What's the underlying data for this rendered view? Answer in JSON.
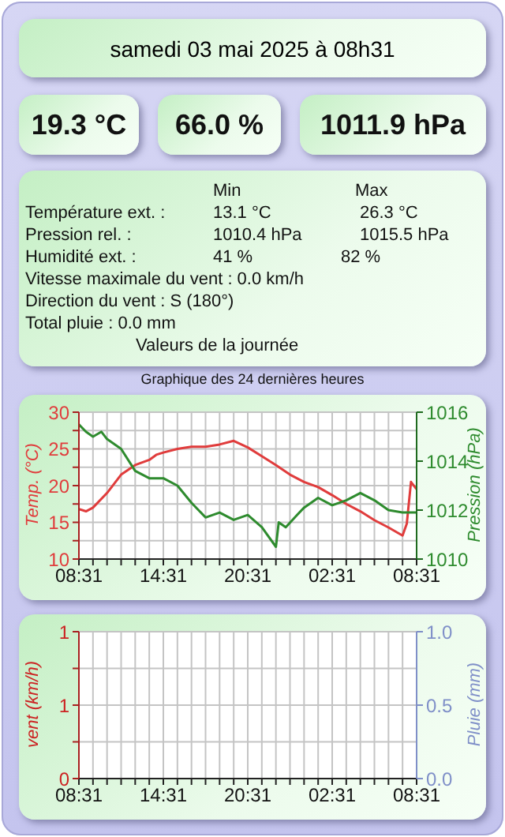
{
  "chart_data": [
    {
      "type": "other",
      "title": "samedi 03 mai 2025 à 08h31",
      "annotations": [
        "19.3 °C",
        "66.0 %",
        "1011.9 hPa",
        "Min",
        "Max",
        "Température ext. :",
        "13.1 °C",
        "26.3 °C",
        "Pression rel. :",
        "1010.4 hPa",
        "1015.5 hPa",
        "Humidité ext. :",
        "41 %",
        "82 %",
        "Vitesse maximale du vent : 0.0 km/h",
        "Direction du vent : S (180°)",
        "Total pluie : 0.0 mm",
        "Valeurs de la journée"
      ]
    },
    {
      "type": "line",
      "title": "Graphique des 24 dernières heures",
      "ylabel": "Temp. (°C)",
      "y2label": "Pression (hPa)",
      "grid": true,
      "xlim": [
        "2025-05-02T08:31",
        "2025-05-03T08:31"
      ],
      "xticks": [
        {
          "value": "2025-05-02T08:31",
          "label": "08:31"
        },
        {
          "value": "2025-05-02T09:31",
          "label": null
        },
        {
          "value": "2025-05-02T10:31",
          "label": null
        },
        {
          "value": "2025-05-02T11:31",
          "label": null
        },
        {
          "value": "2025-05-02T12:31",
          "label": null
        },
        {
          "value": "2025-05-02T13:31",
          "label": null
        },
        {
          "value": "2025-05-02T14:31",
          "label": "14:31"
        },
        {
          "value": "2025-05-02T15:31",
          "label": null
        },
        {
          "value": "2025-05-02T16:31",
          "label": null
        },
        {
          "value": "2025-05-02T17:31",
          "label": null
        },
        {
          "value": "2025-05-02T18:31",
          "label": null
        },
        {
          "value": "2025-05-02T19:31",
          "label": null
        },
        {
          "value": "2025-05-02T20:31",
          "label": "20:31"
        },
        {
          "value": "2025-05-02T21:31",
          "label": null
        },
        {
          "value": "2025-05-02T22:31",
          "label": null
        },
        {
          "value": "2025-05-02T23:31",
          "label": null
        },
        {
          "value": "2025-05-03T00:31",
          "label": null
        },
        {
          "value": "2025-05-03T01:31",
          "label": null
        },
        {
          "value": "2025-05-03T02:31",
          "label": "02:31"
        },
        {
          "value": "2025-05-03T03:31",
          "label": null
        },
        {
          "value": "2025-05-03T04:31",
          "label": null
        },
        {
          "value": "2025-05-03T05:31",
          "label": null
        },
        {
          "value": "2025-05-03T06:31",
          "label": null
        },
        {
          "value": "2025-05-03T07:31",
          "label": null
        },
        {
          "value": "2025-05-03T08:31",
          "label": "08:31"
        }
      ],
      "ylim": [
        10,
        30
      ],
      "yticks": [
        10,
        {
          "value": 12.5,
          "label": null
        },
        15,
        {
          "value": 17.5,
          "label": null
        },
        20,
        {
          "value": 22.5,
          "label": null
        },
        25,
        {
          "value": 27.5,
          "label": null
        },
        30
      ],
      "y2lim": [
        1010,
        1016
      ],
      "y2ticks": [
        1010,
        1012,
        1014,
        1016
      ],
      "series": [
        {
          "color": "#e03c3c",
          "x": [
            "2025-05-02T08:31",
            "2025-05-02T09:01",
            "2025-05-02T09:31",
            "2025-05-02T10:31",
            "2025-05-02T11:31",
            "2025-05-02T12:31",
            "2025-05-02T13:31",
            "2025-05-02T14:01",
            "2025-05-02T14:31",
            "2025-05-02T15:31",
            "2025-05-02T16:31",
            "2025-05-02T17:31",
            "2025-05-02T18:31",
            "2025-05-02T19:31",
            "2025-05-02T20:31",
            "2025-05-02T21:31",
            "2025-05-02T22:31",
            "2025-05-02T23:31",
            "2025-05-03T00:31",
            "2025-05-03T01:31",
            "2025-05-03T02:31",
            "2025-05-03T03:31",
            "2025-05-03T04:31",
            "2025-05-03T05:31",
            "2025-05-03T06:31",
            "2025-05-03T07:31",
            "2025-05-03T07:49",
            "2025-05-03T08:07",
            "2025-05-03T08:31"
          ],
          "values": [
            16.8,
            16.5,
            17,
            19,
            21.5,
            22.8,
            23.5,
            24.2,
            24.5,
            25,
            25.3,
            25.3,
            25.6,
            26.1,
            25.2,
            24,
            22.8,
            21.5,
            20.5,
            19.8,
            18.7,
            17.5,
            16.5,
            15.3,
            14.3,
            13.2,
            14.8,
            20.5,
            19.5
          ]
        },
        {
          "color": "#2e8b2e",
          "axis": "y2",
          "x": [
            "2025-05-02T08:31",
            "2025-05-02T09:01",
            "2025-05-02T09:31",
            "2025-05-02T10:07",
            "2025-05-02T10:31",
            "2025-05-02T11:31",
            "2025-05-02T12:31",
            "2025-05-02T13:31",
            "2025-05-02T14:31",
            "2025-05-02T15:31",
            "2025-05-02T16:31",
            "2025-05-02T17:31",
            "2025-05-02T18:31",
            "2025-05-02T19:31",
            "2025-05-02T20:31",
            "2025-05-02T21:31",
            "2025-05-02T22:31",
            "2025-05-02T22:43",
            "2025-05-02T23:13",
            "2025-05-03T00:01",
            "2025-05-03T00:31",
            "2025-05-03T01:31",
            "2025-05-03T02:31",
            "2025-05-03T03:31",
            "2025-05-03T04:31",
            "2025-05-03T05:31",
            "2025-05-03T06:31",
            "2025-05-03T07:31",
            "2025-05-03T08:31"
          ],
          "values": [
            1015.5,
            1015.2,
            1015,
            1015.2,
            1014.9,
            1014.5,
            1013.6,
            1013.3,
            1013.3,
            1013,
            1012.3,
            1011.7,
            1011.9,
            1011.6,
            1011.8,
            1011.3,
            1010.5,
            1011.5,
            1011.3,
            1011.8,
            1012.1,
            1012.5,
            1012.2,
            1012.4,
            1012.7,
            1012.4,
            1012,
            1011.9,
            1011.9
          ]
        }
      ]
    },
    {
      "type": "line",
      "ylabel": "vent (km/h)",
      "y2label": "Pluie (mm)",
      "grid": true,
      "xlim": [
        "2025-05-02T08:31",
        "2025-05-03T08:31"
      ],
      "xticks": [
        {
          "value": "2025-05-02T08:31",
          "label": "08:31"
        },
        {
          "value": "2025-05-02T09:31",
          "label": null
        },
        {
          "value": "2025-05-02T10:31",
          "label": null
        },
        {
          "value": "2025-05-02T11:31",
          "label": null
        },
        {
          "value": "2025-05-02T12:31",
          "label": null
        },
        {
          "value": "2025-05-02T13:31",
          "label": null
        },
        {
          "value": "2025-05-02T14:31",
          "label": "14:31"
        },
        {
          "value": "2025-05-02T15:31",
          "label": null
        },
        {
          "value": "2025-05-02T16:31",
          "label": null
        },
        {
          "value": "2025-05-02T17:31",
          "label": null
        },
        {
          "value": "2025-05-02T18:31",
          "label": null
        },
        {
          "value": "2025-05-02T19:31",
          "label": null
        },
        {
          "value": "2025-05-02T20:31",
          "label": "20:31"
        },
        {
          "value": "2025-05-02T21:31",
          "label": null
        },
        {
          "value": "2025-05-02T22:31",
          "label": null
        },
        {
          "value": "2025-05-02T23:31",
          "label": null
        },
        {
          "value": "2025-05-03T00:31",
          "label": null
        },
        {
          "value": "2025-05-03T01:31",
          "label": null
        },
        {
          "value": "2025-05-03T02:31",
          "label": "02:31"
        },
        {
          "value": "2025-05-03T03:31",
          "label": null
        },
        {
          "value": "2025-05-03T04:31",
          "label": null
        },
        {
          "value": "2025-05-03T05:31",
          "label": null
        },
        {
          "value": "2025-05-03T06:31",
          "label": null
        },
        {
          "value": "2025-05-03T07:31",
          "label": null
        },
        {
          "value": "2025-05-03T08:31",
          "label": "08:31"
        }
      ],
      "ylim": [
        0,
        1
      ],
      "yticks": [
        {
          "value": 0,
          "label": "0"
        },
        {
          "value": 0.25,
          "label": null
        },
        {
          "value": 0.5,
          "label": "1"
        },
        {
          "value": 0.75,
          "label": null
        },
        {
          "value": 1,
          "label": "1"
        }
      ],
      "y2lim": [
        0,
        1
      ],
      "y2ticks": [
        {
          "value": 0,
          "label": "0.0"
        },
        {
          "value": 0.5,
          "label": "0.5"
        },
        {
          "value": 1,
          "label": "1.0"
        }
      ]
    }
  ]
}
